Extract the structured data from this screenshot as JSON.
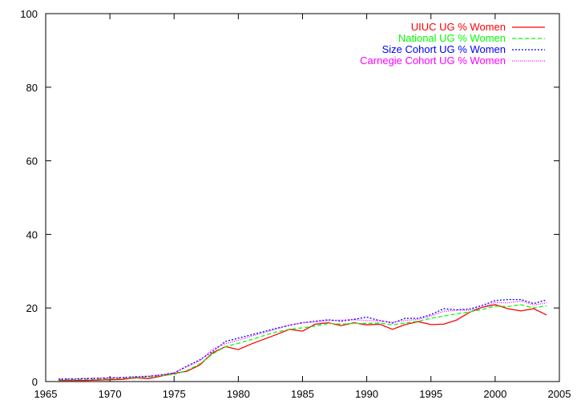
{
  "chart_data": {
    "type": "line",
    "title": "",
    "xlabel": "",
    "ylabel": "",
    "xlim": [
      1965,
      2005
    ],
    "ylim": [
      0,
      100
    ],
    "xticks": [
      1965,
      1970,
      1975,
      1980,
      1985,
      1990,
      1995,
      2000,
      2005
    ],
    "yticks": [
      0,
      20,
      40,
      60,
      80,
      100
    ],
    "grid": false,
    "legend_position": "top-right",
    "x": [
      1966,
      1967,
      1968,
      1969,
      1970,
      1971,
      1972,
      1973,
      1974,
      1975,
      1976,
      1977,
      1978,
      1979,
      1980,
      1981,
      1982,
      1983,
      1984,
      1985,
      1986,
      1987,
      1988,
      1989,
      1990,
      1991,
      1992,
      1993,
      1994,
      1995,
      1996,
      1997,
      1998,
      1999,
      2000,
      2001,
      2002,
      2003,
      2004
    ],
    "series": [
      {
        "name": "UIUC UG % Women",
        "color": "#ff0000",
        "dash": "solid",
        "values": [
          0.3,
          0.3,
          0.3,
          0.4,
          0.5,
          0.6,
          1.0,
          0.8,
          1.5,
          2.2,
          2.8,
          4.5,
          7.8,
          9.5,
          8.7,
          10.2,
          11.5,
          12.8,
          14.2,
          13.7,
          15.6,
          16.0,
          15.2,
          16.0,
          15.4,
          15.6,
          14.2,
          15.5,
          16.3,
          15.5,
          15.6,
          16.7,
          18.8,
          20.2,
          20.9,
          19.8,
          19.2,
          19.8,
          18.1
        ]
      },
      {
        "name": "National UG % Women",
        "color": "#00ff00",
        "dash": "dashed",
        "values": [
          0.5,
          0.5,
          0.6,
          0.7,
          0.8,
          0.9,
          1.1,
          1.3,
          1.6,
          2.0,
          3.0,
          4.8,
          7.5,
          9.5,
          10.4,
          11.4,
          12.5,
          13.5,
          14.2,
          14.6,
          15.1,
          15.8,
          15.6,
          15.8,
          15.8,
          15.9,
          15.4,
          15.9,
          16.4,
          17.2,
          17.8,
          18.4,
          18.9,
          19.6,
          20.5,
          20.4,
          20.9,
          20.0,
          20.6
        ]
      },
      {
        "name": "Size Cohort UG % Women",
        "color": "#0000ff",
        "dash": "dotted",
        "values": [
          0.7,
          0.7,
          0.8,
          0.9,
          1.0,
          1.1,
          1.3,
          1.4,
          1.8,
          2.3,
          4.2,
          5.9,
          8.2,
          10.9,
          11.8,
          12.7,
          13.6,
          14.5,
          15.3,
          16.0,
          16.4,
          16.8,
          16.4,
          16.9,
          17.5,
          16.6,
          15.9,
          17.2,
          17.2,
          18.2,
          19.8,
          19.5,
          19.7,
          20.7,
          22.0,
          22.3,
          22.3,
          21.2,
          22.2
        ]
      },
      {
        "name": "Carnegie Cohort UG % Women",
        "color": "#ff00ff",
        "dash": "dotted-fine",
        "values": [
          0.6,
          0.7,
          0.8,
          0.9,
          1.0,
          1.1,
          1.3,
          1.5,
          1.8,
          2.4,
          4.0,
          5.6,
          8.8,
          10.3,
          11.2,
          12.3,
          13.3,
          14.3,
          15.4,
          16.0,
          16.2,
          16.6,
          16.7,
          16.8,
          16.6,
          16.5,
          16.1,
          16.6,
          16.9,
          17.8,
          19.1,
          19.4,
          19.4,
          20.2,
          21.5,
          21.4,
          21.9,
          20.8,
          21.4
        ]
      }
    ]
  }
}
